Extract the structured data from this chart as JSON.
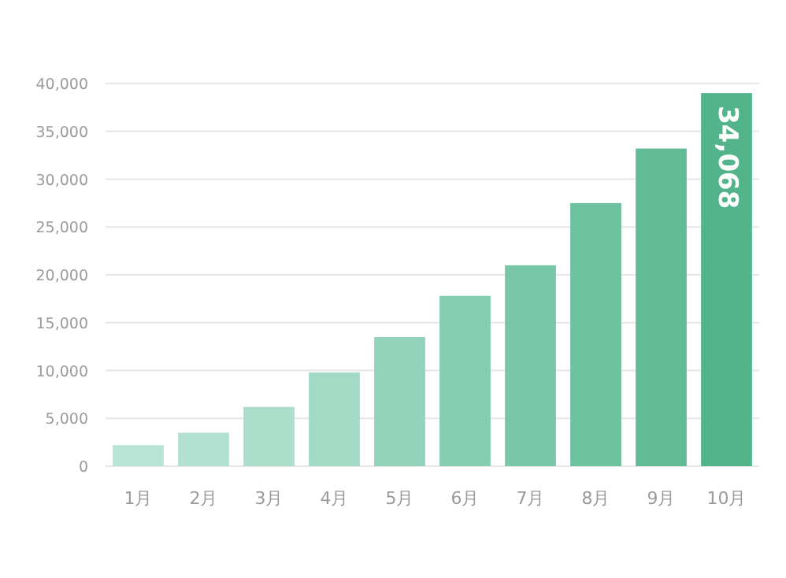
{
  "chart_data": {
    "type": "bar",
    "categories": [
      "1月",
      "2月",
      "3月",
      "4月",
      "5月",
      "6月",
      "7月",
      "8月",
      "9月",
      "10月"
    ],
    "values": [
      2200,
      3500,
      6200,
      9800,
      13500,
      17800,
      21000,
      27500,
      33200,
      39000
    ],
    "colors": [
      "#b9e4d5",
      "#b3e1d1",
      "#abdecb",
      "#a2dac5",
      "#93d3bb",
      "#85cdb1",
      "#78c7a8",
      "#6cc19f",
      "#60bb96",
      "#53b48c"
    ],
    "ylim": [
      0,
      40000
    ],
    "yticks": [
      {
        "value": 0,
        "label": "0"
      },
      {
        "value": 5000,
        "label": "5,000"
      },
      {
        "value": 10000,
        "label": "10,000"
      },
      {
        "value": 15000,
        "label": "15,000"
      },
      {
        "value": 20000,
        "label": "20,000"
      },
      {
        "value": 25000,
        "label": "25,000"
      },
      {
        "value": 30000,
        "label": "30,000"
      },
      {
        "value": 35000,
        "label": "35,000"
      },
      {
        "value": 40000,
        "label": "40,000"
      }
    ],
    "grid": "y",
    "annotations": [
      "34,068"
    ]
  }
}
